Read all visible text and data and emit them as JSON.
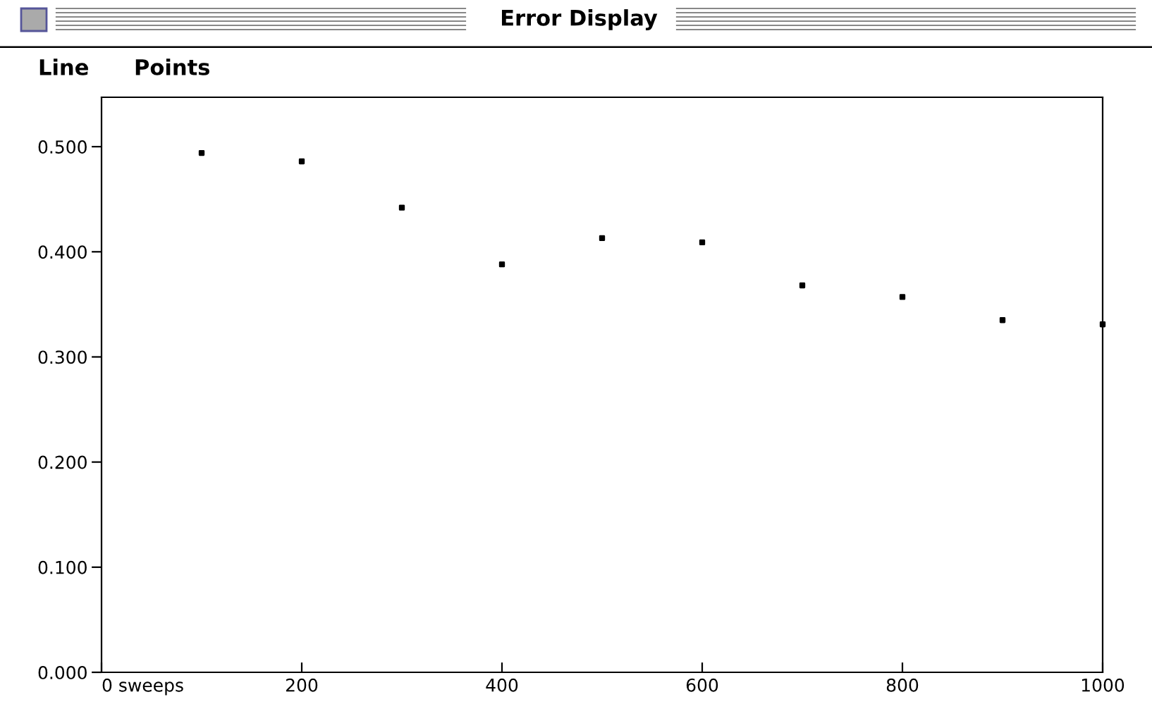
{
  "chart_data": {
    "type": "scatter",
    "title": "Error Display",
    "annotations": [
      "Line",
      "Points"
    ],
    "x": [
      100,
      200,
      300,
      400,
      500,
      600,
      700,
      800,
      900,
      1000
    ],
    "series": [
      {
        "color": "#000000",
        "values": [
          0.494,
          0.486,
          0.442,
          0.388,
          0.413,
          0.409,
          0.368,
          0.357,
          0.335,
          0.331
        ]
      }
    ],
    "xlim": [
      0,
      1000
    ],
    "xticks": [
      {
        "value": 0,
        "label": "0 sweeps"
      },
      200,
      400,
      600,
      800,
      1000
    ],
    "ylim": [
      0,
      0.547
    ],
    "yticks": [
      {
        "value": 0,
        "label": "0.000"
      },
      {
        "value": 0.1,
        "label": "0.100"
      },
      {
        "value": 0.2,
        "label": "0.200"
      },
      {
        "value": 0.3,
        "label": "0.300"
      },
      {
        "value": 0.4,
        "label": "0.400"
      },
      {
        "value": 0.5,
        "label": "0.500"
      }
    ],
    "marker": "square",
    "grid": false,
    "legend": false
  }
}
